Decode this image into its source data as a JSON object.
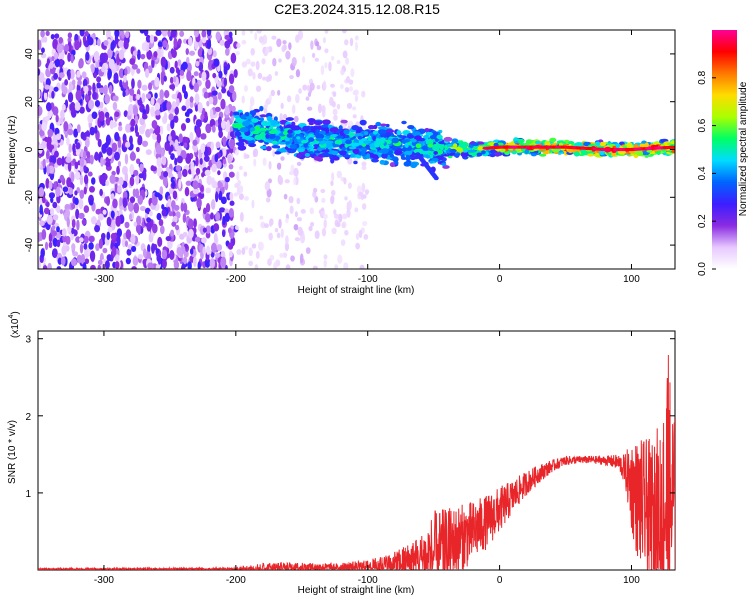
{
  "title": "C2E3.2024.315.12.08.R15",
  "chart_data": [
    {
      "type": "heatmap",
      "xlabel": "Height of straight line (km)",
      "ylabel": "Frequency (Hz)",
      "xlim": [
        -350,
        133
      ],
      "ylim": [
        -50,
        50
      ],
      "xticks": [
        -300,
        -200,
        -100,
        0,
        100
      ],
      "xtick_labels": [
        "-300",
        "-200",
        "-100",
        "0",
        "100"
      ],
      "yticks": [
        -40,
        -20,
        0,
        20,
        40
      ],
      "ytick_labels": [
        "-40",
        "-20",
        "0",
        "20",
        "40"
      ],
      "colorbar": {
        "label": "Normalized spectral amplitude",
        "range": [
          0,
          1
        ],
        "ticks": [
          0.0,
          0.2,
          0.4,
          0.6,
          0.8
        ],
        "tick_labels": [
          "0.0",
          "0.2",
          "0.4",
          "0.6",
          "0.8"
        ],
        "colormap": [
          "#ffffff",
          "#e6c8ff",
          "#8a2be2",
          "#3c1eff",
          "#0064ff",
          "#00dcff",
          "#00ff64",
          "#aaff00",
          "#ffdc00",
          "#ff7800",
          "#ff0000",
          "#ff0096"
        ]
      },
      "features": [
        {
          "name": "noise region",
          "x_range": [
            -350,
            -200
          ],
          "freq_range": [
            -50,
            50
          ],
          "amplitude": 0.2
        },
        {
          "name": "faint vertical band",
          "x_range": [
            -175,
            -135
          ],
          "freq_range": [
            -50,
            50
          ],
          "amplitude": 0.05
        },
        {
          "name": "signal band",
          "x_range": [
            -200,
            133
          ],
          "center_freq": [
            [
              -200,
              10
            ],
            [
              -150,
              4
            ],
            [
              -100,
              3
            ],
            [
              -50,
              1
            ],
            [
              -20,
              0
            ],
            [
              0,
              1
            ],
            [
              50,
              1
            ],
            [
              80,
              0
            ],
            [
              100,
              0
            ],
            [
              133,
              1
            ]
          ],
          "peak_amplitude": 1.0
        }
      ],
      "grid": false
    },
    {
      "type": "line",
      "xlabel": "Height of straight line (km)",
      "ylabel": "SNR (10 * v/v)",
      "y_multiplier_label": "(x10",
      "y_multiplier_exponent": "4",
      "y_multiplier_close": ")",
      "xlim": [
        -350,
        133
      ],
      "ylim": [
        0,
        3.1
      ],
      "xticks": [
        -300,
        -200,
        -100,
        0,
        100
      ],
      "xtick_labels": [
        "-300",
        "-200",
        "-100",
        "0",
        "100"
      ],
      "yticks": [
        1,
        2,
        3
      ],
      "ytick_labels": [
        "1",
        "2",
        "3"
      ],
      "color": "#e8262a",
      "envelope_x": [
        -350,
        -200,
        -180,
        -160,
        -140,
        -120,
        -100,
        -80,
        -60,
        -50,
        -40,
        -30,
        -20,
        -10,
        0,
        10,
        20,
        30,
        40,
        50,
        60,
        70,
        80,
        90,
        95,
        100,
        105,
        110,
        115,
        120,
        125,
        128,
        130,
        133
      ],
      "envelope_base": [
        0.01,
        0.01,
        0.02,
        0.03,
        0.03,
        0.03,
        0.05,
        0.08,
        0.15,
        0.22,
        0.3,
        0.4,
        0.5,
        0.62,
        0.78,
        0.95,
        1.12,
        1.25,
        1.35,
        1.42,
        1.43,
        1.43,
        1.42,
        1.4,
        1.3,
        1.1,
        0.9,
        0.8,
        0.7,
        0.8,
        0.9,
        0.9,
        0.85,
        0.8
      ],
      "envelope_noise": [
        0.01,
        0.02,
        0.08,
        0.07,
        0.06,
        0.06,
        0.08,
        0.15,
        0.3,
        0.55,
        0.5,
        0.45,
        0.4,
        0.35,
        0.3,
        0.22,
        0.16,
        0.12,
        0.08,
        0.06,
        0.05,
        0.05,
        0.06,
        0.1,
        0.2,
        0.6,
        0.8,
        0.9,
        1.0,
        1.1,
        1.5,
        2.2,
        1.6,
        1.2
      ],
      "grid": false
    }
  ]
}
